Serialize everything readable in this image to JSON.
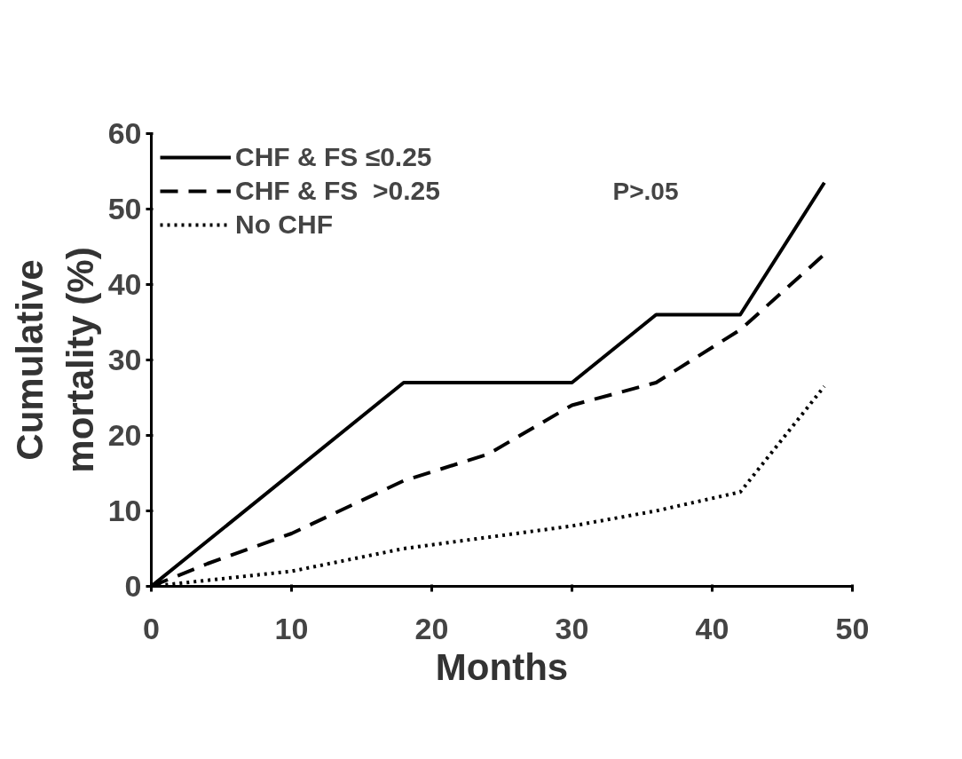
{
  "chart_data": {
    "type": "line",
    "xlabel": "Months",
    "ylabel": "Cumulative\nmortality (%)",
    "xlim": [
      0,
      50
    ],
    "xticks": [
      0,
      10,
      20,
      30,
      40,
      50
    ],
    "ylim": [
      0,
      60
    ],
    "yticks": [
      0,
      10,
      20,
      30,
      40,
      50,
      60
    ],
    "grid": false,
    "legend": "top left",
    "marker": "none",
    "annotations": [
      "P>.05"
    ],
    "series": [
      {
        "name": "CHF & FS ≤0.25",
        "color": "#000000",
        "line_style": "solid",
        "x": [
          0,
          18,
          30,
          36,
          42,
          48
        ],
        "values": [
          0,
          27,
          27,
          36,
          36,
          53.5
        ]
      },
      {
        "name": "CHF & FS  >0.25",
        "color": "#000000",
        "line_style": "dashed",
        "x": [
          0,
          4,
          10,
          18,
          24,
          30,
          36,
          42,
          48
        ],
        "values": [
          0,
          3,
          7,
          14,
          17.5,
          24,
          27,
          34,
          44
        ]
      },
      {
        "name": "No CHF",
        "color": "#000000",
        "line_style": "dotted",
        "x": [
          0,
          10,
          18,
          30,
          36,
          42,
          48
        ],
        "values": [
          0,
          2,
          5,
          8,
          10,
          12.5,
          26.5
        ]
      }
    ]
  }
}
